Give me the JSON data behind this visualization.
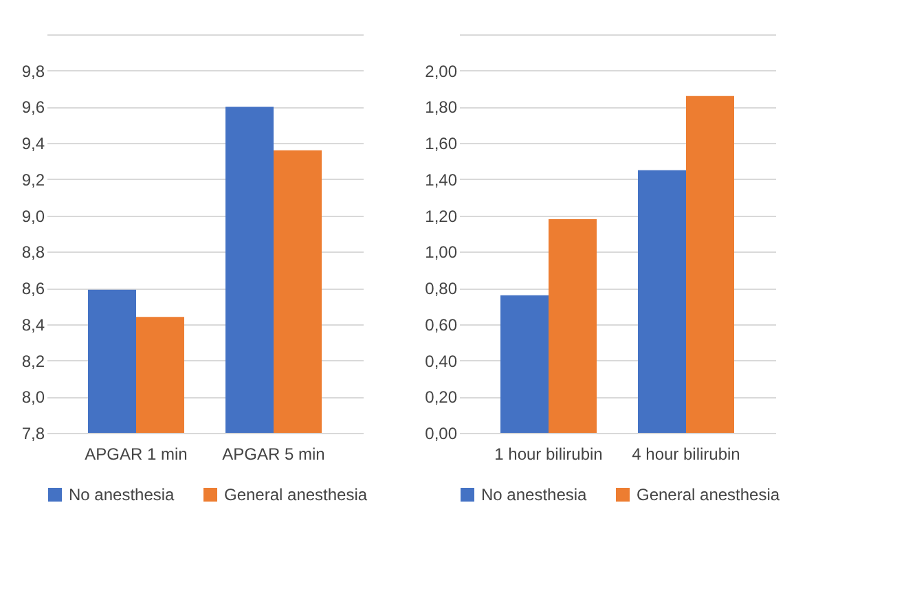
{
  "chart_data": [
    {
      "type": "bar",
      "categories": [
        "APGAR 1 min",
        "APGAR 5 min"
      ],
      "series": [
        {
          "name": "No anesthesia",
          "color": "#4472c4",
          "values": [
            8.59,
            9.6
          ]
        },
        {
          "name": "General anesthesia",
          "color": "#ed7d31",
          "values": [
            8.44,
            9.36
          ]
        }
      ],
      "ylim": [
        7.8,
        10.0
      ],
      "yticks": [
        {
          "value": 7.8,
          "label": "7,8"
        },
        {
          "value": 8.0,
          "label": "8,0"
        },
        {
          "value": 8.2,
          "label": "8,2"
        },
        {
          "value": 8.4,
          "label": "8,4"
        },
        {
          "value": 8.6,
          "label": "8,6"
        },
        {
          "value": 8.8,
          "label": "8,8"
        },
        {
          "value": 9.0,
          "label": "9,0"
        },
        {
          "value": 9.2,
          "label": "9,2"
        },
        {
          "value": 9.4,
          "label": "9,4"
        },
        {
          "value": 9.6,
          "label": "9,6"
        },
        {
          "value": 9.8,
          "label": "9,8"
        },
        {
          "value": 10.0,
          "label": null
        }
      ],
      "grid": "y",
      "legend": "bottom"
    },
    {
      "type": "bar",
      "categories": [
        "1 hour bilirubin",
        "4 hour bilirubin"
      ],
      "series": [
        {
          "name": "No anesthesia",
          "color": "#4472c4",
          "values": [
            0.76,
            1.45
          ]
        },
        {
          "name": "General anesthesia",
          "color": "#ed7d31",
          "values": [
            1.18,
            1.86
          ]
        }
      ],
      "ylim": [
        0,
        2.2
      ],
      "yticks": [
        {
          "value": 0,
          "label": "0,00"
        },
        {
          "value": 0.2,
          "label": "0,20"
        },
        {
          "value": 0.4,
          "label": "0,40"
        },
        {
          "value": 0.6,
          "label": "0,60"
        },
        {
          "value": 0.8,
          "label": "0,80"
        },
        {
          "value": 1.0,
          "label": "1,00"
        },
        {
          "value": 1.2,
          "label": "1,20"
        },
        {
          "value": 1.4,
          "label": "1,40"
        },
        {
          "value": 1.6,
          "label": "1,60"
        },
        {
          "value": 1.8,
          "label": "1,80"
        },
        {
          "value": 2.0,
          "label": "2,00"
        },
        {
          "value": 2.2,
          "label": null
        }
      ],
      "grid": "y",
      "legend": "bottom"
    }
  ]
}
